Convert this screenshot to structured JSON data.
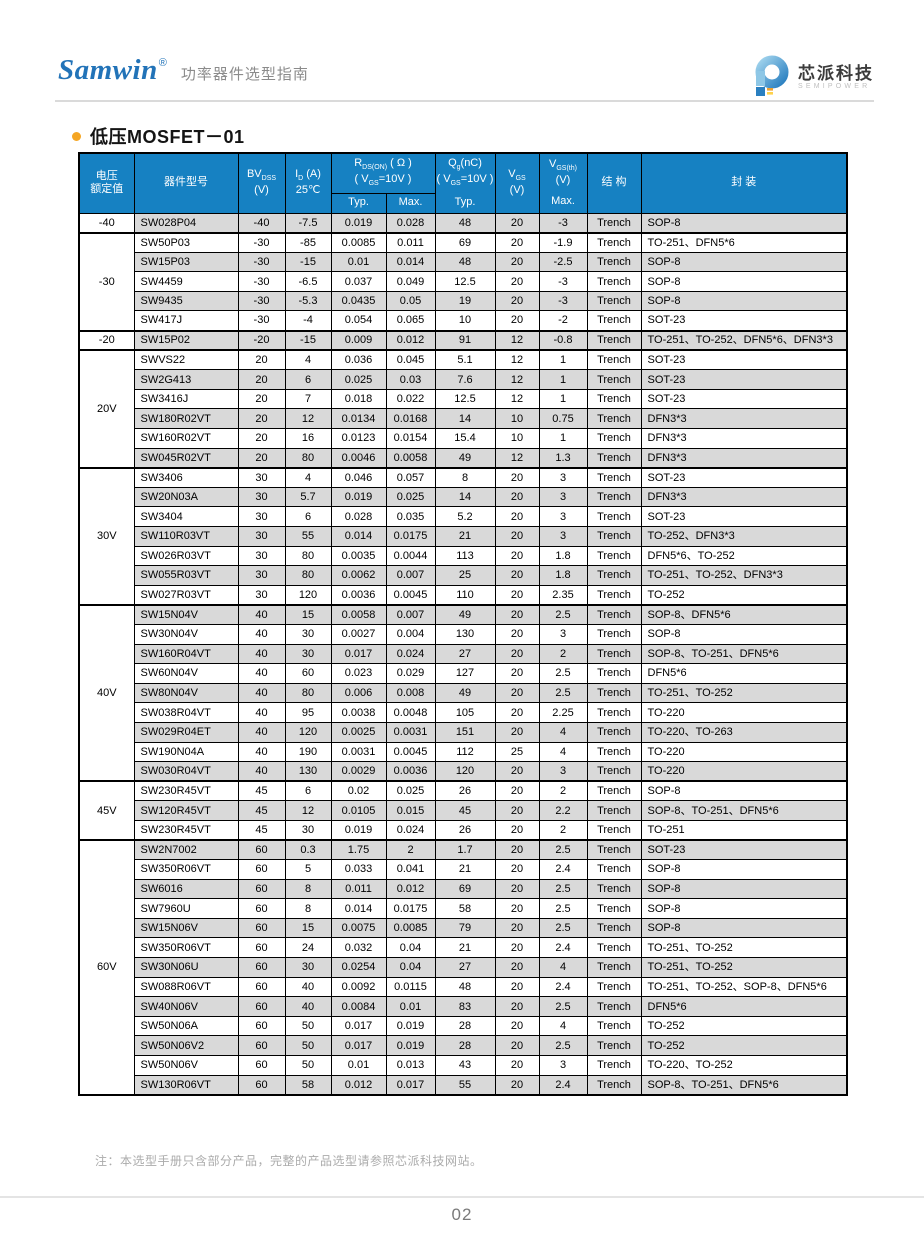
{
  "page_header": {
    "brand": "Samwin",
    "reg_mark": "®",
    "subtitle": "功率器件选型指南",
    "logo": {
      "company_cn": "芯派科技",
      "company_en": "SEMIPOWER"
    }
  },
  "section": {
    "title": "低压MOSFET－01"
  },
  "colors": {
    "header_blue": "#1681c2",
    "stripe_gray": "#d9d9d9",
    "brand_blue": "#2273b8",
    "accent_orange": "#f5a623"
  },
  "table": {
    "header": {
      "voltage_line1": "电压",
      "voltage_line2": "额定值",
      "part": "器件型号",
      "bv_main": "BV",
      "bv_sub": "DSS",
      "bv_unit": "(V)",
      "id_main": "I",
      "id_sub": "D",
      "id_unit": " (A)",
      "id_cond": "25℃",
      "rds_main": "R",
      "rds_sub": "DS(ON)",
      "rds_unit": " ( Ω )",
      "rds_cond_pre": "( V",
      "rds_cond_sub": "GS",
      "rds_cond_post": "=10V )",
      "qg_main": "Q",
      "qg_sub": "g",
      "qg_unit": "(nC)",
      "qg_cond_pre": "( V",
      "qg_cond_sub": "GS",
      "qg_cond_post": "=10V )",
      "qg_stat": "Typ.",
      "vgs_main": "V",
      "vgs_sub": "GS",
      "vgs_unit": "(V)",
      "vgsth_main": "V",
      "vgsth_sub": "GS(th)",
      "vgsth_unit": "(V)",
      "vgsth_stat": "Max.",
      "typ": "Typ.",
      "max": "Max.",
      "structure": "结 构",
      "package": "封 装"
    },
    "groups": [
      {
        "voltage": "-40",
        "rows": [
          [
            "SW028P04",
            "-40",
            "-7.5",
            "0.019",
            "0.028",
            "48",
            "20",
            "-3",
            "Trench",
            "SOP-8"
          ]
        ]
      },
      {
        "voltage": "-30",
        "rows": [
          [
            "SW50P03",
            "-30",
            "-85",
            "0.0085",
            "0.011",
            "69",
            "20",
            "-1.9",
            "Trench",
            "TO-251、DFN5*6"
          ],
          [
            "SW15P03",
            "-30",
            "-15",
            "0.01",
            "0.014",
            "48",
            "20",
            "-2.5",
            "Trench",
            "SOP-8"
          ],
          [
            "SW4459",
            "-30",
            "-6.5",
            "0.037",
            "0.049",
            "12.5",
            "20",
            "-3",
            "Trench",
            "SOP-8"
          ],
          [
            "SW9435",
            "-30",
            "-5.3",
            "0.0435",
            "0.05",
            "19",
            "20",
            "-3",
            "Trench",
            "SOP-8"
          ],
          [
            "SW417J",
            "-30",
            "-4",
            "0.054",
            "0.065",
            "10",
            "20",
            "-2",
            "Trench",
            "SOT-23"
          ]
        ]
      },
      {
        "voltage": "-20",
        "rows": [
          [
            "SW15P02",
            "-20",
            "-15",
            "0.009",
            "0.012",
            "91",
            "12",
            "-0.8",
            "Trench",
            "TO-251、TO-252、DFN5*6、DFN3*3"
          ]
        ]
      },
      {
        "voltage": "20V",
        "rows": [
          [
            "SWVS22",
            "20",
            "4",
            "0.036",
            "0.045",
            "5.1",
            "12",
            "1",
            "Trench",
            "SOT-23"
          ],
          [
            "SW2G413",
            "20",
            "6",
            "0.025",
            "0.03",
            "7.6",
            "12",
            "1",
            "Trench",
            "SOT-23"
          ],
          [
            "SW3416J",
            "20",
            "7",
            "0.018",
            "0.022",
            "12.5",
            "12",
            "1",
            "Trench",
            "SOT-23"
          ],
          [
            "SW180R02VT",
            "20",
            "12",
            "0.0134",
            "0.0168",
            "14",
            "10",
            "0.75",
            "Trench",
            "DFN3*3"
          ],
          [
            "SW160R02VT",
            "20",
            "16",
            "0.0123",
            "0.0154",
            "15.4",
            "10",
            "1",
            "Trench",
            "DFN3*3"
          ],
          [
            "SW045R02VT",
            "20",
            "80",
            "0.0046",
            "0.0058",
            "49",
            "12",
            "1.3",
            "Trench",
            "DFN3*3"
          ]
        ]
      },
      {
        "voltage": "30V",
        "rows": [
          [
            "SW3406",
            "30",
            "4",
            "0.046",
            "0.057",
            "8",
            "20",
            "3",
            "Trench",
            "SOT-23"
          ],
          [
            "SW20N03A",
            "30",
            "5.7",
            "0.019",
            "0.025",
            "14",
            "20",
            "3",
            "Trench",
            "DFN3*3"
          ],
          [
            "SW3404",
            "30",
            "6",
            "0.028",
            "0.035",
            "5.2",
            "20",
            "3",
            "Trench",
            "SOT-23"
          ],
          [
            "SW110R03VT",
            "30",
            "55",
            "0.014",
            "0.0175",
            "21",
            "20",
            "3",
            "Trench",
            "TO-252、DFN3*3"
          ],
          [
            "SW026R03VT",
            "30",
            "80",
            "0.0035",
            "0.0044",
            "113",
            "20",
            "1.8",
            "Trench",
            "DFN5*6、TO-252"
          ],
          [
            "SW055R03VT",
            "30",
            "80",
            "0.0062",
            "0.007",
            "25",
            "20",
            "1.8",
            "Trench",
            "TO-251、TO-252、DFN3*3"
          ],
          [
            "SW027R03VT",
            "30",
            "120",
            "0.0036",
            "0.0045",
            "110",
            "20",
            "2.35",
            "Trench",
            "TO-252"
          ]
        ]
      },
      {
        "voltage": "40V",
        "rows": [
          [
            "SW15N04V",
            "40",
            "15",
            "0.0058",
            "0.007",
            "49",
            "20",
            "2.5",
            "Trench",
            "SOP-8、DFN5*6"
          ],
          [
            "SW30N04V",
            "40",
            "30",
            "0.0027",
            "0.004",
            "130",
            "20",
            "3",
            "Trench",
            "SOP-8"
          ],
          [
            "SW160R04VT",
            "40",
            "30",
            "0.017",
            "0.024",
            "27",
            "20",
            "2",
            "Trench",
            "SOP-8、TO-251、DFN5*6"
          ],
          [
            "SW60N04V",
            "40",
            "60",
            "0.023",
            "0.029",
            "127",
            "20",
            "2.5",
            "Trench",
            "DFN5*6"
          ],
          [
            "SW80N04V",
            "40",
            "80",
            "0.006",
            "0.008",
            "49",
            "20",
            "2.5",
            "Trench",
            "TO-251、TO-252"
          ],
          [
            "SW038R04VT",
            "40",
            "95",
            "0.0038",
            "0.0048",
            "105",
            "20",
            "2.25",
            "Trench",
            "TO-220"
          ],
          [
            "SW029R04ET",
            "40",
            "120",
            "0.0025",
            "0.0031",
            "151",
            "20",
            "4",
            "Trench",
            "TO-220、TO-263"
          ],
          [
            "SW190N04A",
            "40",
            "190",
            "0.0031",
            "0.0045",
            "112",
            "25",
            "4",
            "Trench",
            "TO-220"
          ],
          [
            "SW030R04VT",
            "40",
            "130",
            "0.0029",
            "0.0036",
            "120",
            "20",
            "3",
            "Trench",
            "TO-220"
          ]
        ]
      },
      {
        "voltage": "45V",
        "rows": [
          [
            "SW230R45VT",
            "45",
            "6",
            "0.02",
            "0.025",
            "26",
            "20",
            "2",
            "Trench",
            "SOP-8"
          ],
          [
            "SW120R45VT",
            "45",
            "12",
            "0.0105",
            "0.015",
            "45",
            "20",
            "2.2",
            "Trench",
            "SOP-8、TO-251、DFN5*6"
          ],
          [
            "SW230R45VT",
            "45",
            "30",
            "0.019",
            "0.024",
            "26",
            "20",
            "2",
            "Trench",
            "TO-251"
          ]
        ]
      },
      {
        "voltage": "60V",
        "rows": [
          [
            "SW2N7002",
            "60",
            "0.3",
            "1.75",
            "2",
            "1.7",
            "20",
            "2.5",
            "Trench",
            "SOT-23"
          ],
          [
            "SW350R06VT",
            "60",
            "5",
            "0.033",
            "0.041",
            "21",
            "20",
            "2.4",
            "Trench",
            "SOP-8"
          ],
          [
            "SW6016",
            "60",
            "8",
            "0.011",
            "0.012",
            "69",
            "20",
            "2.5",
            "Trench",
            "SOP-8"
          ],
          [
            "SW7960U",
            "60",
            "8",
            "0.014",
            "0.0175",
            "58",
            "20",
            "2.5",
            "Trench",
            "SOP-8"
          ],
          [
            "SW15N06V",
            "60",
            "15",
            "0.0075",
            "0.0085",
            "79",
            "20",
            "2.5",
            "Trench",
            "SOP-8"
          ],
          [
            "SW350R06VT",
            "60",
            "24",
            "0.032",
            "0.04",
            "21",
            "20",
            "2.4",
            "Trench",
            "TO-251、TO-252"
          ],
          [
            "SW30N06U",
            "60",
            "30",
            "0.0254",
            "0.04",
            "27",
            "20",
            "4",
            "Trench",
            "TO-251、TO-252"
          ],
          [
            "SW088R06VT",
            "60",
            "40",
            "0.0092",
            "0.0115",
            "48",
            "20",
            "2.4",
            "Trench",
            "TO-251、TO-252、SOP-8、DFN5*6"
          ],
          [
            "SW40N06V",
            "60",
            "40",
            "0.0084",
            "0.01",
            "83",
            "20",
            "2.5",
            "Trench",
            "DFN5*6"
          ],
          [
            "SW50N06A",
            "60",
            "50",
            "0.017",
            "0.019",
            "28",
            "20",
            "4",
            "Trench",
            "TO-252"
          ],
          [
            "SW50N06V2",
            "60",
            "50",
            "0.017",
            "0.019",
            "28",
            "20",
            "2.5",
            "Trench",
            "TO-252"
          ],
          [
            "SW50N06V",
            "60",
            "50",
            "0.01",
            "0.013",
            "43",
            "20",
            "3",
            "Trench",
            "TO-220、TO-252"
          ],
          [
            "SW130R06VT",
            "60",
            "58",
            "0.012",
            "0.017",
            "55",
            "20",
            "2.4",
            "Trench",
            "SOP-8、TO-251、DFN5*6"
          ]
        ]
      }
    ]
  },
  "footer": {
    "note": "注：本选型手册只含部分产品，完整的产品选型请参照芯派科技网站。",
    "page_number": "02"
  }
}
